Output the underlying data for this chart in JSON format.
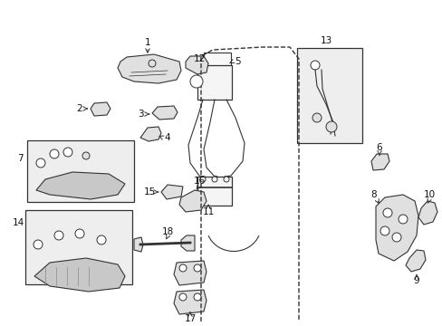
{
  "bg_color": "#ffffff",
  "fig_width": 4.89,
  "fig_height": 3.6,
  "dpi": 100,
  "ec": "#333333",
  "lw": 0.8
}
